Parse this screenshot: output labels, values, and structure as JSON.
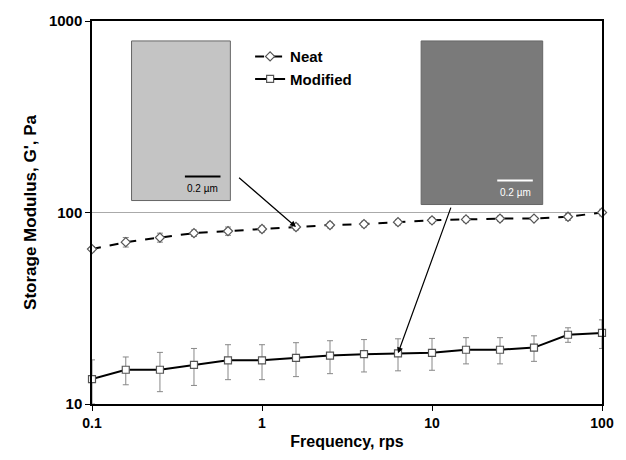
{
  "chart_data": {
    "type": "line",
    "x_label": "Frequency, rps",
    "y_label": "Storage Modulus, G', Pa",
    "log": true,
    "grid": "y",
    "legend": "upper center",
    "xlim": [
      0.1,
      100
    ],
    "xticks": [
      0.1,
      1,
      10,
      100
    ],
    "ylim": [
      10,
      1000
    ],
    "yticks": [
      10,
      100,
      1000
    ],
    "x": [
      0.1,
      0.158,
      0.251,
      0.398,
      0.631,
      1,
      1.585,
      2.512,
      3.981,
      6.31,
      10,
      15.85,
      25.12,
      39.81,
      63.1,
      100
    ],
    "series": [
      {
        "name": "Neat",
        "color": "#000000",
        "marker": "diamond",
        "line_style": "dash",
        "values": [
          64.4,
          70,
          74,
          78,
          80,
          82,
          84,
          86,
          87,
          89,
          91,
          92,
          93,
          93,
          95,
          100
        ],
        "errors": [
          2,
          4,
          4,
          3,
          4,
          3,
          3,
          3,
          3,
          3,
          3,
          3,
          3,
          2,
          4,
          4
        ]
      },
      {
        "name": "Modified",
        "color": "#000000",
        "marker": "square",
        "line_style": "solid",
        "values": [
          13.5,
          15.1,
          15.1,
          16,
          16.9,
          16.9,
          17.4,
          17.9,
          18.2,
          18.4,
          18.5,
          19.2,
          19.2,
          19.7,
          23,
          23.5
        ],
        "errors": [
          3.5,
          2.5,
          3.5,
          3.5,
          3.5,
          3.5,
          3.5,
          3.5,
          3.5,
          3.5,
          3.5,
          3,
          3,
          3,
          2,
          4
        ]
      }
    ],
    "annotations": [
      {
        "text": "0.2 µm",
        "series": "Neat",
        "x": 1.585
      },
      {
        "text": "0.2 µm",
        "series": "Modified",
        "x": 6.31
      }
    ]
  }
}
